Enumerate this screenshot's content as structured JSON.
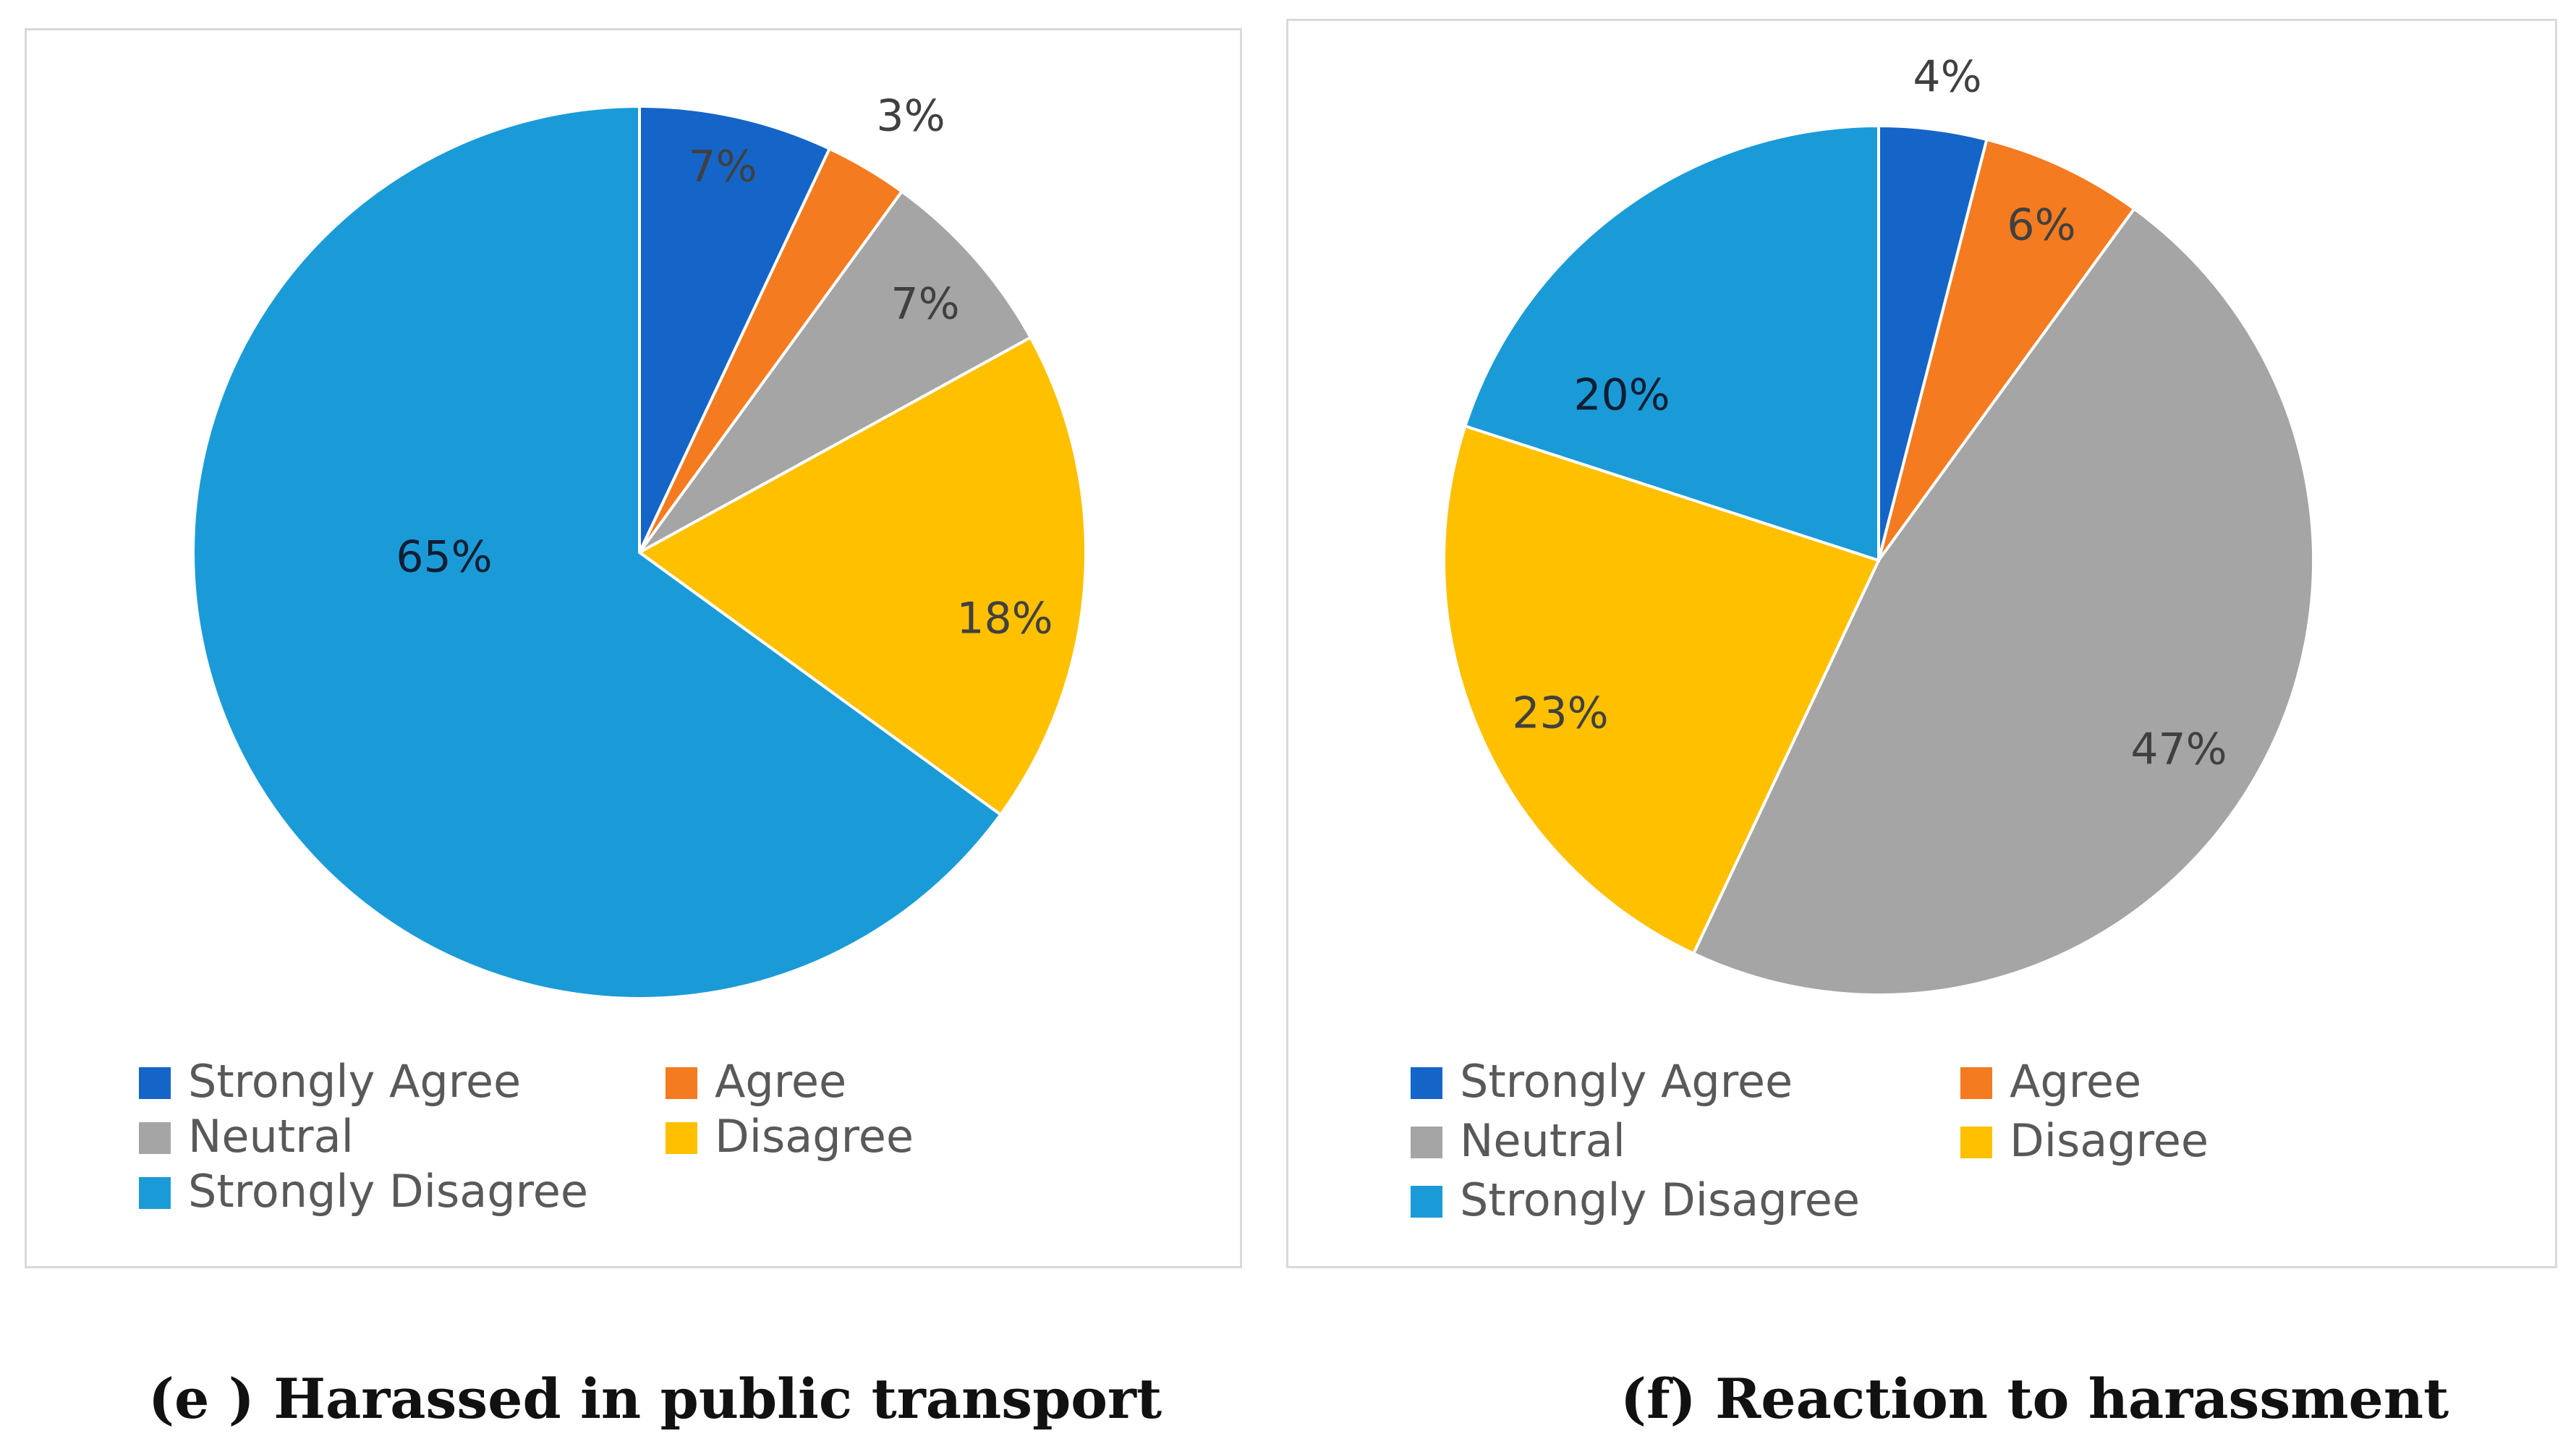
{
  "chart_data": [
    {
      "type": "pie",
      "panel": "e",
      "caption": "(e ) Harassed in public transport",
      "categories": [
        "Strongly Agree",
        "Agree",
        "Neutral",
        "Disagree",
        "Strongly Disagree"
      ],
      "values": [
        7,
        3,
        7,
        18,
        65
      ],
      "labels": [
        "7%",
        "3%",
        "7%",
        "18%",
        "65%"
      ],
      "colors": [
        "#1565c8",
        "#f47b20",
        "#a5a5a5",
        "#ffc000",
        "#1a9bd7"
      ],
      "legend_position": "bottom",
      "start_angle": "12 o'clock",
      "direction": "clockwise"
    },
    {
      "type": "pie",
      "panel": "f",
      "caption": "(f) Reaction to harassment",
      "categories": [
        "Strongly Agree",
        "Agree",
        "Neutral",
        "Disagree",
        "Strongly Disagree"
      ],
      "values": [
        4,
        6,
        47,
        23,
        20
      ],
      "labels": [
        "4%",
        "6%",
        "47%",
        "23%",
        "20%"
      ],
      "colors": [
        "#1565c8",
        "#f47b20",
        "#a5a5a5",
        "#ffc000",
        "#1a9bd7"
      ],
      "legend_position": "bottom",
      "start_angle": "12 o'clock",
      "direction": "clockwise"
    }
  ]
}
